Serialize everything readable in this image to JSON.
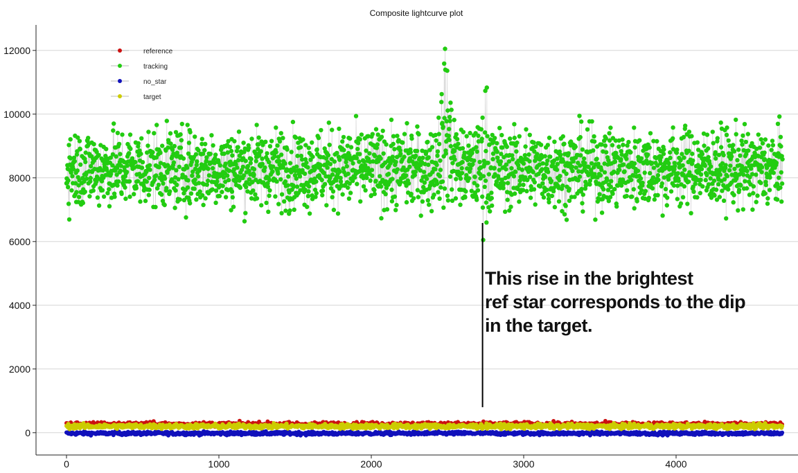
{
  "chart_data": {
    "type": "scatter",
    "title": "Composite lightcurve plot",
    "xlabel": "",
    "ylabel": "",
    "xlim": [
      -200,
      4800
    ],
    "ylim": [
      -700,
      12800
    ],
    "x_ticks": [
      0,
      1000,
      2000,
      3000,
      4000
    ],
    "y_ticks": [
      0,
      2000,
      4000,
      6000,
      8000,
      10000,
      12000
    ],
    "grid": "horizontal",
    "legend_position": "top-left",
    "n_points": 4700,
    "series": [
      {
        "name": "reference",
        "color": "#cc1111",
        "mean": 260,
        "spread": 50,
        "band_low": 180,
        "band_high": 380
      },
      {
        "name": "tracking",
        "color": "#22cc11",
        "mean": 8300,
        "spread": 800,
        "band_low": 6050,
        "band_high": 12050,
        "features": [
          {
            "x_start": 2420,
            "x_end": 2560,
            "level": 9600,
            "peak": 12050
          },
          {
            "x_start": 2700,
            "x_end": 2800,
            "level": 8700,
            "peak": 11050
          }
        ]
      },
      {
        "name": "no_star",
        "color": "#1111bb",
        "mean": -20,
        "spread": 35,
        "band_low": -120,
        "band_high": 60
      },
      {
        "name": "target",
        "color": "#cccc00",
        "mean": 200,
        "spread": 50,
        "band_low": 110,
        "band_high": 300
      }
    ],
    "annotation": {
      "lines": [
        "This rise in the brightest",
        "ref star corresponds to the dip",
        "in the target."
      ],
      "pointer_x": 2730
    }
  }
}
